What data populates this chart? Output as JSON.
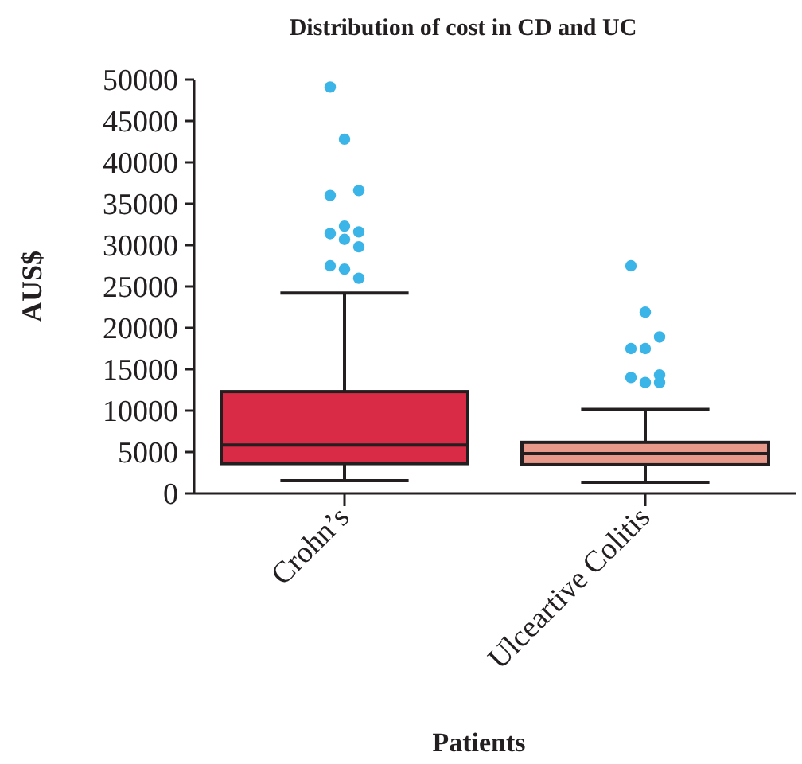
{
  "chart_data": {
    "type": "box",
    "title": "Distribution of cost in CD and UC",
    "xlabel": "Patients",
    "ylabel": "AUS$",
    "categories": [
      "Crohn’s",
      "Ulceartive Colitis"
    ],
    "colors": [
      "#d92b45",
      "#e8998a"
    ],
    "boxes": [
      {
        "low": 1540,
        "q1": 3600,
        "median": 5850,
        "q3": 12300,
        "high": 24200
      },
      {
        "low": 1350,
        "q1": 3470,
        "median": 4800,
        "q3": 6170,
        "high": 10150
      }
    ],
    "series": [
      {
        "type": "scatter",
        "color": "#3bb5e8",
        "x": [
          "Crohn’s",
          "Crohn’s",
          "Crohn’s",
          "Crohn’s",
          "Crohn’s",
          "Crohn’s",
          "Crohn’s",
          "Crohn’s",
          "Crohn’s",
          "Crohn’s",
          "Crohn’s",
          "Crohn’s",
          "Ulceartive Colitis",
          "Ulceartive Colitis",
          "Ulceartive Colitis",
          "Ulceartive Colitis",
          "Ulceartive Colitis",
          "Ulceartive Colitis",
          "Ulceartive Colitis",
          "Ulceartive Colitis",
          "Ulceartive Colitis"
        ],
        "values": [
          49100,
          42800,
          36600,
          36000,
          32300,
          31600,
          31400,
          30700,
          29800,
          27500,
          27100,
          26000,
          27500,
          21900,
          18900,
          17500,
          17500,
          14300,
          14000,
          13400,
          13400
        ]
      }
    ],
    "ylim": [
      0,
      50000
    ],
    "yticks": [
      0,
      5000,
      10000,
      15000,
      20000,
      25000,
      30000,
      35000,
      40000,
      45000,
      50000
    ],
    "grid": false
  }
}
